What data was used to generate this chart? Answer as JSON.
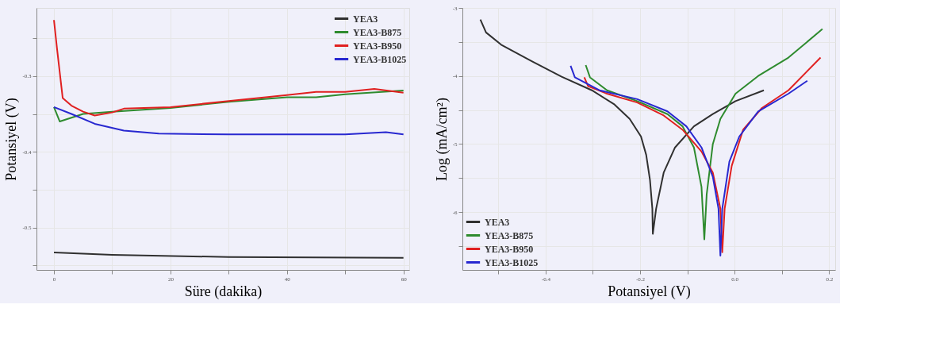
{
  "chart_data": [
    {
      "type": "line",
      "xlabel": "Süre (dakika)",
      "ylabel": "Potansiyel (V)",
      "xlim": [
        -3,
        61
      ],
      "ylim": [
        -0.556,
        -0.21
      ],
      "xticks": [
        0,
        {
          "value": 10,
          "label": null
        },
        20,
        {
          "value": 30,
          "label": null
        },
        40,
        {
          "value": 50,
          "label": null
        },
        60
      ],
      "yticks": [
        {
          "value": -0.25,
          "label": null
        },
        -0.3,
        {
          "value": -0.35,
          "label": null
        },
        -0.4,
        {
          "value": -0.45,
          "label": null
        },
        -0.5,
        {
          "value": -0.55,
          "label": null
        }
      ],
      "grid": true,
      "legend": "top right",
      "marker": "none",
      "line_style": "solid",
      "series": [
        {
          "name": "YEA3",
          "color": "#303030",
          "x": [
            0,
            10,
            30,
            60
          ],
          "values": [
            -0.533,
            -0.536,
            -0.539,
            -0.54
          ]
        },
        {
          "name": "YEA3-B875",
          "color": "#2e8b2e",
          "x": [
            0,
            1,
            3,
            5,
            10,
            20,
            30,
            40,
            45,
            50,
            60
          ],
          "values": [
            -0.341,
            -0.36,
            -0.355,
            -0.35,
            -0.347,
            -0.342,
            -0.334,
            -0.328,
            -0.328,
            -0.324,
            -0.319
          ]
        },
        {
          "name": "YEA3-B950",
          "color": "#e02020",
          "x": [
            0,
            0.5,
            1.5,
            3,
            5,
            7,
            10,
            12,
            20,
            30,
            40,
            45,
            50,
            55,
            60
          ],
          "values": [
            -0.226,
            -0.262,
            -0.329,
            -0.339,
            -0.347,
            -0.352,
            -0.348,
            -0.343,
            -0.341,
            -0.333,
            -0.325,
            -0.321,
            -0.321,
            -0.317,
            -0.322
          ]
        },
        {
          "name": "YEA3-B1025",
          "color": "#2828d0",
          "x": [
            0,
            3,
            7,
            12,
            18,
            30,
            50,
            57,
            60
          ],
          "values": [
            -0.341,
            -0.35,
            -0.363,
            -0.372,
            -0.376,
            -0.377,
            -0.377,
            -0.374,
            -0.377
          ]
        }
      ]
    },
    {
      "type": "line",
      "xlabel": "Potansiyel (V)",
      "ylabel": "Log (mA/cm²)",
      "xlim": [
        -0.576,
        0.213
      ],
      "ylim": [
        -6.85,
        -3
      ],
      "xticks": [
        {
          "value": -0.5,
          "label": null
        },
        -0.4,
        {
          "value": -0.3,
          "label": null
        },
        -0.2,
        {
          "value": -0.1,
          "label": null
        },
        {
          "value": 0,
          "label": "0.0"
        },
        {
          "value": 0.1,
          "label": null
        },
        0.2
      ],
      "yticks": [
        -3,
        {
          "value": -3.5,
          "label": null
        },
        -4,
        {
          "value": -4.5,
          "label": null
        },
        -5,
        {
          "value": -5.5,
          "label": null
        },
        -6,
        {
          "value": -6.5,
          "label": null
        }
      ],
      "grid": true,
      "legend": "bottom left",
      "marker": "none",
      "line_style": "solid",
      "series": [
        {
          "name": "YEA3",
          "color": "#303030",
          "x": [
            -0.538,
            -0.526,
            -0.494,
            -0.43,
            -0.366,
            -0.302,
            -0.254,
            -0.222,
            -0.198,
            -0.187,
            -0.179,
            -0.174,
            -0.173,
            -0.166,
            -0.15,
            -0.126,
            -0.086,
            -0.046,
            0.002,
            0.062
          ],
          "values": [
            -3.17,
            -3.36,
            -3.54,
            -3.78,
            -4.01,
            -4.21,
            -4.42,
            -4.63,
            -4.89,
            -5.16,
            -5.53,
            -5.95,
            -6.32,
            -5.95,
            -5.42,
            -5.05,
            -4.74,
            -4.56,
            -4.37,
            -4.21
          ]
        },
        {
          "name": "YEA3-B875",
          "color": "#2e8b2e",
          "x": [
            -0.315,
            -0.306,
            -0.27,
            -0.206,
            -0.142,
            -0.11,
            -0.086,
            -0.07,
            -0.064,
            -0.059,
            -0.046,
            -0.03,
            0.002,
            0.05,
            0.114,
            0.186
          ],
          "values": [
            -3.84,
            -4.02,
            -4.21,
            -4.37,
            -4.56,
            -4.74,
            -5.05,
            -5.63,
            -6.4,
            -5.74,
            -5.0,
            -4.63,
            -4.26,
            -4.0,
            -3.73,
            -3.31
          ]
        },
        {
          "name": "YEA3-B950",
          "color": "#e02020",
          "x": [
            -0.318,
            -0.31,
            -0.27,
            -0.206,
            -0.15,
            -0.11,
            -0.07,
            -0.046,
            -0.03,
            -0.026,
            -0.021,
            -0.006,
            0.018,
            0.058,
            0.114,
            0.182
          ],
          "values": [
            -4.02,
            -4.15,
            -4.26,
            -4.39,
            -4.58,
            -4.79,
            -5.11,
            -5.42,
            -5.95,
            -6.59,
            -5.95,
            -5.32,
            -4.79,
            -4.47,
            -4.21,
            -3.73
          ]
        },
        {
          "name": "YEA3-B1025",
          "color": "#2828d0",
          "x": [
            -0.347,
            -0.338,
            -0.286,
            -0.206,
            -0.142,
            -0.102,
            -0.07,
            -0.046,
            -0.034,
            -0.03,
            -0.026,
            -0.011,
            0.01,
            0.05,
            0.114,
            0.154
          ],
          "values": [
            -3.85,
            -4.02,
            -4.21,
            -4.34,
            -4.52,
            -4.74,
            -5.05,
            -5.48,
            -5.95,
            -6.64,
            -5.95,
            -5.26,
            -4.89,
            -4.52,
            -4.26,
            -4.07
          ]
        }
      ]
    }
  ]
}
